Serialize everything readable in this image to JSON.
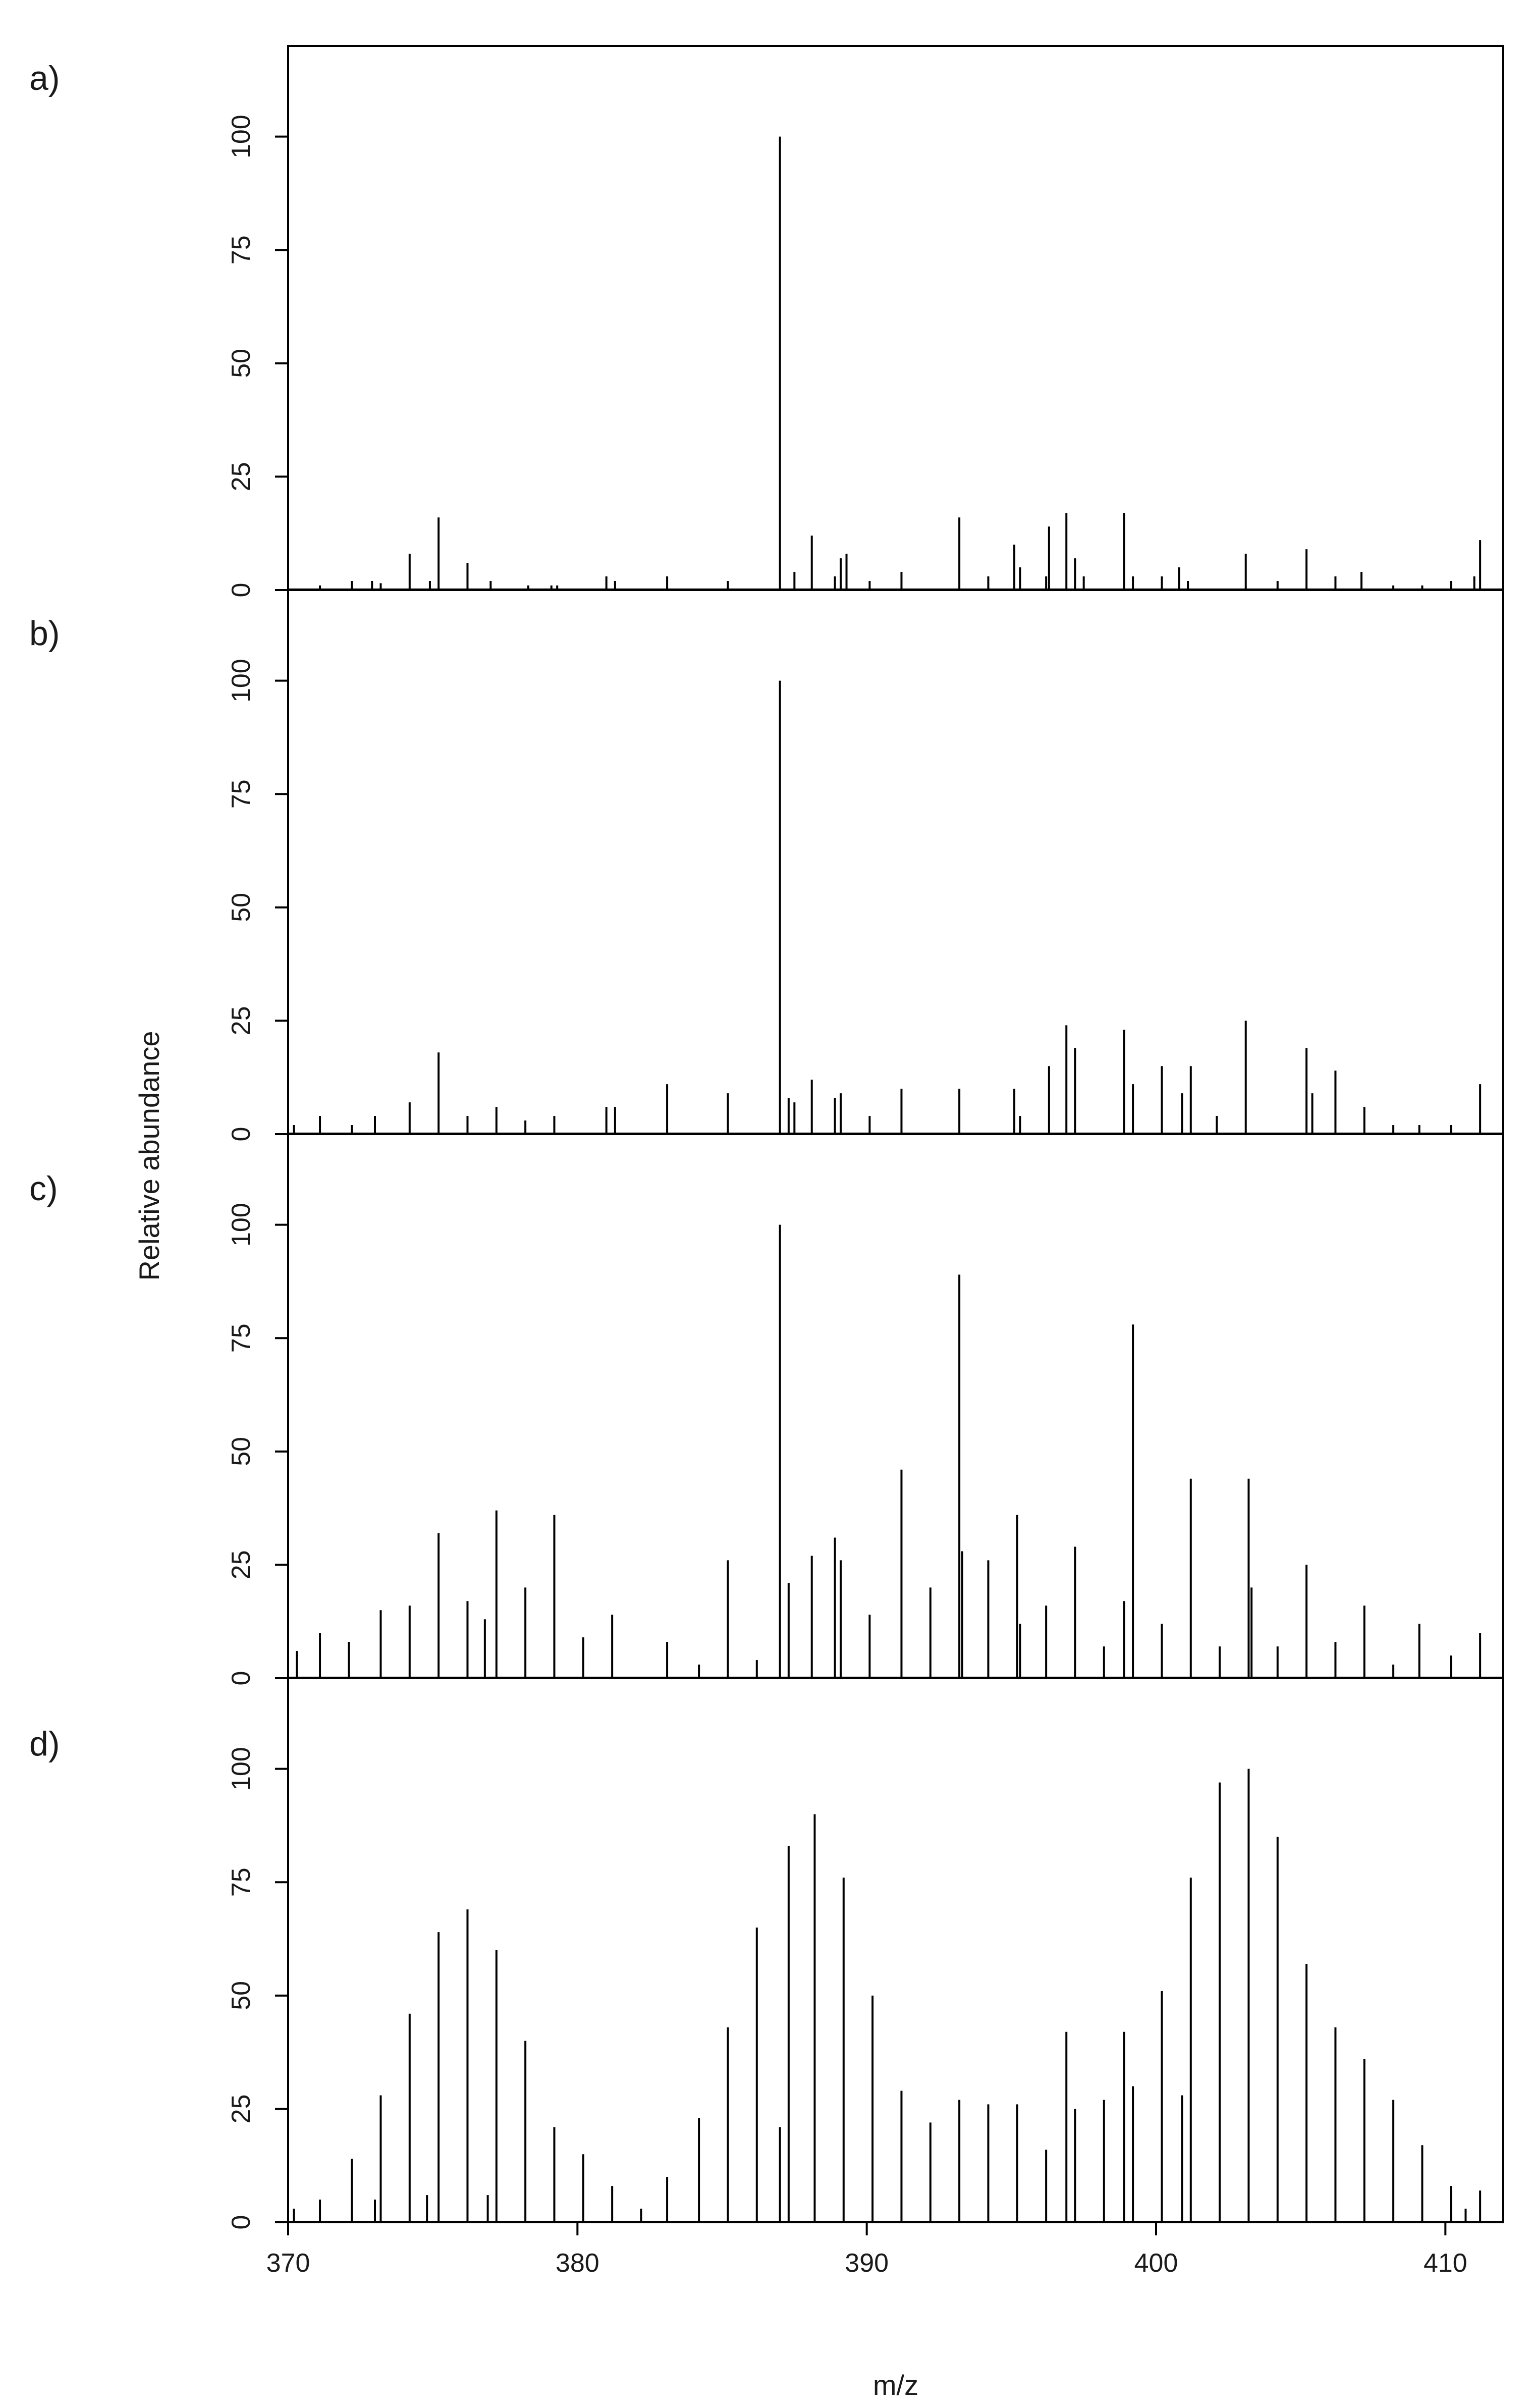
{
  "chart_data": {
    "type": "bar",
    "xlabel": "m/z",
    "ylabel": "Relative abundance",
    "xlim": [
      370,
      412
    ],
    "ylim": [
      0,
      120
    ],
    "x_ticks": [
      370,
      380,
      390,
      400,
      410
    ],
    "y_ticks": [
      0,
      25,
      50,
      75,
      100
    ],
    "grid": false,
    "legend": "none",
    "panels": [
      {
        "label": "a)",
        "peaks": [
          [
            371.1,
            1
          ],
          [
            372.2,
            2
          ],
          [
            372.9,
            2
          ],
          [
            373.2,
            1.5
          ],
          [
            374.2,
            8
          ],
          [
            374.9,
            2
          ],
          [
            375.2,
            16
          ],
          [
            376.2,
            6
          ],
          [
            377.0,
            2
          ],
          [
            378.3,
            1
          ],
          [
            379.1,
            1
          ],
          [
            379.3,
            1
          ],
          [
            381.0,
            3
          ],
          [
            381.3,
            2
          ],
          [
            383.1,
            3
          ],
          [
            385.2,
            2
          ],
          [
            387.0,
            100
          ],
          [
            387.5,
            4
          ],
          [
            388.1,
            12
          ],
          [
            388.9,
            3
          ],
          [
            389.1,
            7
          ],
          [
            389.3,
            8
          ],
          [
            390.1,
            2
          ],
          [
            391.2,
            4
          ],
          [
            393.2,
            16
          ],
          [
            394.2,
            3
          ],
          [
            395.1,
            10
          ],
          [
            395.3,
            5
          ],
          [
            396.2,
            3
          ],
          [
            396.3,
            14
          ],
          [
            396.9,
            17
          ],
          [
            397.2,
            7
          ],
          [
            397.5,
            3
          ],
          [
            398.9,
            17
          ],
          [
            399.2,
            3
          ],
          [
            400.2,
            3
          ],
          [
            400.8,
            5
          ],
          [
            401.1,
            2
          ],
          [
            403.1,
            8
          ],
          [
            404.2,
            2
          ],
          [
            405.2,
            9
          ],
          [
            406.2,
            3
          ],
          [
            407.1,
            4
          ],
          [
            408.2,
            1
          ],
          [
            409.2,
            1
          ],
          [
            410.2,
            2
          ],
          [
            411.0,
            3
          ],
          [
            411.2,
            11
          ]
        ]
      },
      {
        "label": "b)",
        "peaks": [
          [
            370.2,
            2
          ],
          [
            371.1,
            4
          ],
          [
            372.2,
            2
          ],
          [
            373.0,
            4
          ],
          [
            374.2,
            7
          ],
          [
            375.2,
            18
          ],
          [
            376.2,
            4
          ],
          [
            377.2,
            6
          ],
          [
            378.2,
            3
          ],
          [
            379.2,
            4
          ],
          [
            381.0,
            6
          ],
          [
            381.3,
            6
          ],
          [
            383.1,
            11
          ],
          [
            385.2,
            9
          ],
          [
            387.0,
            100
          ],
          [
            387.3,
            8
          ],
          [
            387.5,
            7
          ],
          [
            388.1,
            12
          ],
          [
            388.9,
            8
          ],
          [
            389.1,
            9
          ],
          [
            390.1,
            4
          ],
          [
            391.2,
            10
          ],
          [
            393.2,
            10
          ],
          [
            395.1,
            10
          ],
          [
            395.3,
            4
          ],
          [
            396.3,
            15
          ],
          [
            396.9,
            24
          ],
          [
            397.2,
            19
          ],
          [
            398.9,
            23
          ],
          [
            399.2,
            11
          ],
          [
            400.2,
            15
          ],
          [
            400.9,
            9
          ],
          [
            401.2,
            15
          ],
          [
            402.1,
            4
          ],
          [
            403.1,
            25
          ],
          [
            405.2,
            19
          ],
          [
            405.4,
            9
          ],
          [
            406.2,
            14
          ],
          [
            407.2,
            6
          ],
          [
            408.2,
            2
          ],
          [
            409.1,
            2
          ],
          [
            410.2,
            2
          ],
          [
            411.2,
            11
          ]
        ]
      },
      {
        "label": "c)",
        "peaks": [
          [
            370.3,
            6
          ],
          [
            371.1,
            10
          ],
          [
            372.1,
            8
          ],
          [
            373.2,
            15
          ],
          [
            374.2,
            16
          ],
          [
            375.2,
            32
          ],
          [
            376.2,
            17
          ],
          [
            376.8,
            13
          ],
          [
            377.2,
            37
          ],
          [
            378.2,
            20
          ],
          [
            379.2,
            36
          ],
          [
            380.2,
            9
          ],
          [
            381.2,
            14
          ],
          [
            383.1,
            8
          ],
          [
            384.2,
            3
          ],
          [
            385.2,
            26
          ],
          [
            386.2,
            4
          ],
          [
            387.0,
            100
          ],
          [
            387.3,
            21
          ],
          [
            388.1,
            27
          ],
          [
            388.9,
            31
          ],
          [
            389.1,
            26
          ],
          [
            390.1,
            14
          ],
          [
            391.2,
            46
          ],
          [
            392.2,
            20
          ],
          [
            393.2,
            89
          ],
          [
            393.3,
            28
          ],
          [
            394.2,
            26
          ],
          [
            395.2,
            36
          ],
          [
            395.3,
            12
          ],
          [
            396.2,
            16
          ],
          [
            397.2,
            29
          ],
          [
            398.2,
            7
          ],
          [
            398.9,
            17
          ],
          [
            399.2,
            78
          ],
          [
            400.2,
            12
          ],
          [
            401.2,
            44
          ],
          [
            402.2,
            7
          ],
          [
            403.2,
            44
          ],
          [
            403.3,
            20
          ],
          [
            404.2,
            7
          ],
          [
            405.2,
            25
          ],
          [
            406.2,
            8
          ],
          [
            407.2,
            16
          ],
          [
            408.2,
            3
          ],
          [
            409.1,
            12
          ],
          [
            410.2,
            5
          ],
          [
            411.2,
            10
          ]
        ]
      },
      {
        "label": "d)",
        "peaks": [
          [
            370.2,
            3
          ],
          [
            371.1,
            5
          ],
          [
            372.2,
            14
          ],
          [
            373.0,
            5
          ],
          [
            373.2,
            28
          ],
          [
            374.2,
            46
          ],
          [
            374.8,
            6
          ],
          [
            375.2,
            64
          ],
          [
            376.2,
            69
          ],
          [
            376.9,
            6
          ],
          [
            377.2,
            60
          ],
          [
            378.2,
            40
          ],
          [
            379.2,
            21
          ],
          [
            380.2,
            15
          ],
          [
            381.2,
            8
          ],
          [
            382.2,
            3
          ],
          [
            383.1,
            10
          ],
          [
            384.2,
            23
          ],
          [
            385.2,
            43
          ],
          [
            386.2,
            65
          ],
          [
            387.0,
            21
          ],
          [
            387.3,
            83
          ],
          [
            388.2,
            90
          ],
          [
            389.2,
            76
          ],
          [
            390.2,
            50
          ],
          [
            391.2,
            29
          ],
          [
            392.2,
            22
          ],
          [
            393.2,
            27
          ],
          [
            394.2,
            26
          ],
          [
            395.2,
            26
          ],
          [
            396.2,
            16
          ],
          [
            396.9,
            42
          ],
          [
            397.2,
            25
          ],
          [
            398.2,
            27
          ],
          [
            398.9,
            42
          ],
          [
            399.2,
            30
          ],
          [
            400.2,
            51
          ],
          [
            400.9,
            28
          ],
          [
            401.2,
            76
          ],
          [
            402.2,
            97
          ],
          [
            403.2,
            100
          ],
          [
            404.2,
            85
          ],
          [
            405.2,
            57
          ],
          [
            406.2,
            43
          ],
          [
            407.2,
            36
          ],
          [
            408.2,
            27
          ],
          [
            409.2,
            17
          ],
          [
            410.2,
            8
          ],
          [
            410.7,
            3
          ],
          [
            411.2,
            7
          ]
        ]
      }
    ]
  }
}
